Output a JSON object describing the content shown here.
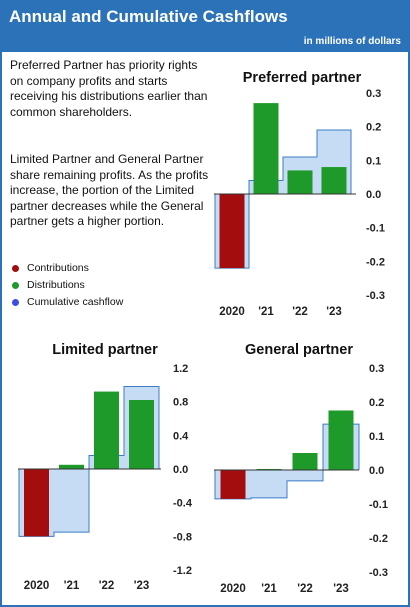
{
  "header": {
    "title": "Annual and Cumulative Cashflows",
    "units": "in millions of dollars"
  },
  "intro": {
    "paragraph1": "Preferred Partner has priority rights on company profits and starts receiving his distributions earlier than common shareholders.",
    "paragraph2": "Limited Partner and General Partner share remaining profits. As the profits increase, the portion of the Limited partner decreases while the General partner gets a higher portion."
  },
  "legend": [
    {
      "label": "Contributions",
      "color": "#a30d0d"
    },
    {
      "label": "Distributions",
      "color": "#1e9a2a"
    },
    {
      "label": "Cumulative cashflow",
      "color": "#3c4fe0"
    }
  ],
  "colors": {
    "contributions": "#a30d0d",
    "distributions": "#1e9a2a",
    "cumulative_fill": "#c6dcf5",
    "cumulative_stroke": "#3b7bc7",
    "header": "#2c72b8"
  },
  "chart_data": [
    {
      "type": "bar",
      "title": "Preferred partner",
      "categories": [
        "2020",
        "'21",
        "'22",
        "'23"
      ],
      "ylim": [
        -0.3,
        0.3
      ],
      "yticks": [
        0.3,
        0.2,
        0.1,
        0.0,
        -0.1,
        -0.2,
        -0.3
      ],
      "ytick_labels": [
        "0.3",
        "0.2",
        "0.1",
        "0.0",
        "-0.1",
        "-0.2",
        "-0.3"
      ],
      "axis_side": "right",
      "series": [
        {
          "name": "Contributions",
          "values": [
            -0.22,
            0,
            0,
            0
          ]
        },
        {
          "name": "Distributions",
          "values": [
            0,
            0.27,
            0.07,
            0.08
          ]
        },
        {
          "name": "Cumulative cashflow",
          "values": [
            -0.22,
            0.04,
            0.11,
            0.19
          ]
        }
      ]
    },
    {
      "type": "bar",
      "title": "Limited partner",
      "categories": [
        "2020",
        "'21",
        "'22",
        "'23"
      ],
      "ylim": [
        -1.2,
        1.2
      ],
      "yticks": [
        1.2,
        0.8,
        0.4,
        0.0,
        -0.4,
        -0.8,
        -1.2
      ],
      "ytick_labels": [
        "1.2",
        "0.8",
        "0.4",
        "0.0",
        "-0.4",
        "-0.8",
        "-1.2"
      ],
      "axis_side": "right",
      "series": [
        {
          "name": "Contributions",
          "values": [
            -0.8,
            0,
            0,
            0
          ]
        },
        {
          "name": "Distributions",
          "values": [
            0,
            0.05,
            0.92,
            0.82
          ]
        },
        {
          "name": "Cumulative cashflow",
          "values": [
            -0.8,
            -0.75,
            0.16,
            0.98
          ]
        }
      ]
    },
    {
      "type": "bar",
      "title": "General partner",
      "categories": [
        "2020",
        "'21",
        "'22",
        "'23"
      ],
      "ylim": [
        -0.3,
        0.3
      ],
      "yticks": [
        0.3,
        0.2,
        0.1,
        0.0,
        -0.1,
        -0.2,
        -0.3
      ],
      "ytick_labels": [
        "0.3",
        "0.2",
        "0.1",
        "0.0",
        "-0.1",
        "-0.2",
        "-0.3"
      ],
      "axis_side": "right",
      "series": [
        {
          "name": "Contributions",
          "values": [
            -0.085,
            0,
            0,
            0
          ]
        },
        {
          "name": "Distributions",
          "values": [
            0,
            0.003,
            0.05,
            0.175
          ]
        },
        {
          "name": "Cumulative cashflow",
          "values": [
            -0.085,
            -0.082,
            -0.032,
            0.135
          ]
        }
      ]
    }
  ]
}
